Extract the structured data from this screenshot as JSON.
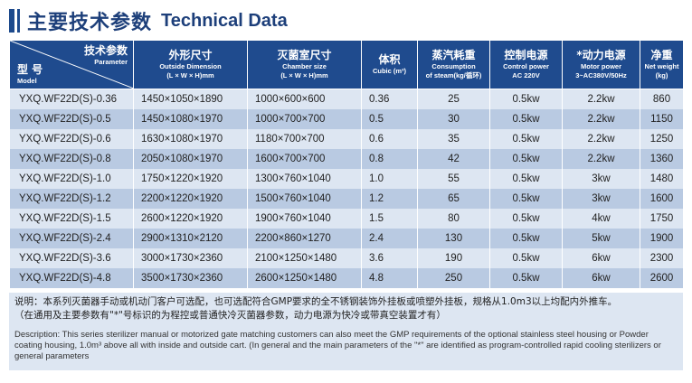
{
  "title": {
    "cn": "主要技术参数",
    "en": "Technical Data"
  },
  "headers": {
    "model": {
      "param_cn": "技术参数",
      "param_en": "Parameter",
      "model_cn": "型 号",
      "model_en": "Model"
    },
    "outside": {
      "cn": "外形尺寸",
      "en1": "Outside Dimension",
      "en2": "(L × W × H)mm"
    },
    "chamber": {
      "cn": "灭菌室尺寸",
      "en1": "Chamber size",
      "en2": "(L × W × H)mm"
    },
    "volume": {
      "cn": "体积",
      "en1": "Cubic (m³)"
    },
    "steam": {
      "cn": "蒸汽耗重",
      "en1": "Consumption",
      "en2": "of steam(kg/循环)"
    },
    "control": {
      "cn": "控制电源",
      "en1": "Control power",
      "en2": "AC 220V"
    },
    "power": {
      "cn": "*动力电源",
      "en1": "Motor power",
      "en2": "3~AC380V/50Hz"
    },
    "weight": {
      "cn": "净重",
      "en1": "Net weight",
      "en2": "(kg)"
    }
  },
  "rows": [
    {
      "model": "YXQ.WF22D(S)-0.36",
      "outside": "1450×1050×1890",
      "chamber": "1000×600×600",
      "volume": "0.36",
      "steam": "25",
      "control": "0.5kw",
      "power": "2.2kw",
      "weight": "860"
    },
    {
      "model": "YXQ.WF22D(S)-0.5",
      "outside": "1450×1080×1970",
      "chamber": "1000×700×700",
      "volume": "0.5",
      "steam": "30",
      "control": "0.5kw",
      "power": "2.2kw",
      "weight": "1150"
    },
    {
      "model": "YXQ.WF22D(S)-0.6",
      "outside": "1630×1080×1970",
      "chamber": "1180×700×700",
      "volume": "0.6",
      "steam": "35",
      "control": "0.5kw",
      "power": "2.2kw",
      "weight": "1250"
    },
    {
      "model": "YXQ.WF22D(S)-0.8",
      "outside": "2050×1080×1970",
      "chamber": "1600×700×700",
      "volume": "0.8",
      "steam": "42",
      "control": "0.5kw",
      "power": "2.2kw",
      "weight": "1360"
    },
    {
      "model": "YXQ.WF22D(S)-1.0",
      "outside": "1750×1220×1920",
      "chamber": "1300×760×1040",
      "volume": "1.0",
      "steam": "55",
      "control": "0.5kw",
      "power": "3kw",
      "weight": "1480"
    },
    {
      "model": "YXQ.WF22D(S)-1.2",
      "outside": "2200×1220×1920",
      "chamber": "1500×760×1040",
      "volume": "1.2",
      "steam": "65",
      "control": "0.5kw",
      "power": "3kw",
      "weight": "1600"
    },
    {
      "model": "YXQ.WF22D(S)-1.5",
      "outside": "2600×1220×1920",
      "chamber": "1900×760×1040",
      "volume": "1.5",
      "steam": "80",
      "control": "0.5kw",
      "power": "4kw",
      "weight": "1750"
    },
    {
      "model": "YXQ.WF22D(S)-2.4",
      "outside": "2900×1310×2120",
      "chamber": "2200×860×1270",
      "volume": "2.4",
      "steam": "130",
      "control": "0.5kw",
      "power": "5kw",
      "weight": "1900"
    },
    {
      "model": "YXQ.WF22D(S)-3.6",
      "outside": "3000×1730×2360",
      "chamber": "2100×1250×1480",
      "volume": "3.6",
      "steam": "190",
      "control": "0.5kw",
      "power": "6kw",
      "weight": "2300"
    },
    {
      "model": "YXQ.WF22D(S)-4.8",
      "outside": "3500×1730×2360",
      "chamber": "2600×1250×1480",
      "volume": "4.8",
      "steam": "250",
      "control": "0.5kw",
      "power": "6kw",
      "weight": "2600"
    }
  ],
  "notes": {
    "cn1": "说明：本系列灭菌器手动或机动门客户可选配，也可选配符合GMP要求的全不锈钢装饰外挂板或喷塑外挂板，规格从1.0m3以上均配内外推车。",
    "cn2": "（在通用及主要参数有\"*\"号标识的为程控或普通快冷灭菌器参数，动力电源为快冷或带真空装置才有）",
    "en": "Description: This series sterilizer manual or motorized gate matching customers can also meet the GMP requirements of the optional stainless steel housing or Powder coating housing, 1.0m³ above all with inside and outside cart. (In general and the main parameters of the \"*\" are identified as program-controlled rapid cooling sterilizers or general parameters"
  }
}
